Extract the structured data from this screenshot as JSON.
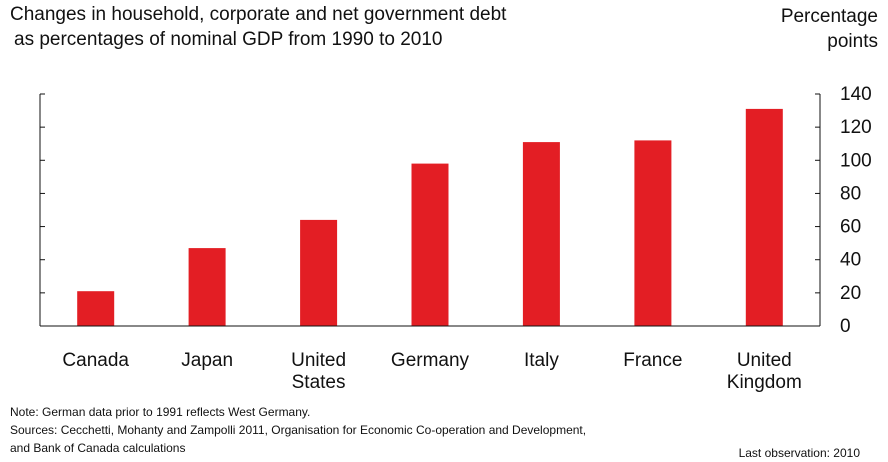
{
  "chart_data": {
    "type": "bar",
    "title_lines": [
      "Changes in household, corporate and net government debt",
      "as percentages of nominal GDP from 1990 to 2010"
    ],
    "ylabel_lines": [
      "Percentage",
      "points"
    ],
    "categories": [
      [
        "Canada"
      ],
      [
        "Japan"
      ],
      [
        "United",
        "States"
      ],
      [
        "Germany"
      ],
      [
        "Italy"
      ],
      [
        "France"
      ],
      [
        "United",
        "Kingdom"
      ]
    ],
    "values": [
      21,
      47,
      64,
      98,
      111,
      112,
      131
    ],
    "ylim": [
      0,
      140
    ],
    "yticks": [
      "0",
      "20",
      "40",
      "60",
      "80",
      "100",
      "120",
      "140"
    ],
    "bar_color": "#e31e24",
    "grid": false
  },
  "notes": {
    "note": "Note: German data prior to 1991 reflects West Germany.",
    "sources_line1": "Sources: Cecchetti, Mohanty and Zampolli 2011, Organisation for Economic Co-operation and Development,",
    "sources_line2": "and Bank of Canada calculations",
    "last_observation": "Last observation: 2010"
  }
}
